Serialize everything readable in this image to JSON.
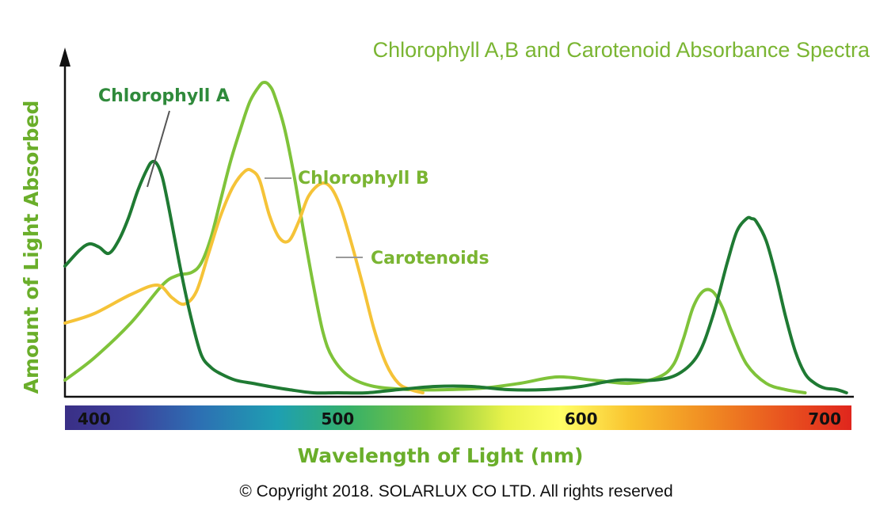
{
  "chart_data": {
    "type": "line",
    "title": "Chlorophyll A,B and Carotenoid Absorbance Spectra",
    "xlabel": "Wavelength of Light (nm)",
    "ylabel": "Amount of Light Absorbed",
    "xlim": [
      388,
      712
    ],
    "ylim": [
      0,
      1
    ],
    "xticks": [
      400,
      500,
      600,
      700
    ],
    "grid": false,
    "legend": "inline labels",
    "series": [
      {
        "name": "Chlorophyll A",
        "color": "#1f7a33",
        "x": [
          388,
          394,
          398,
          402,
          406,
          410,
          414,
          418,
          422,
          424,
          426,
          428,
          430,
          433,
          436,
          440,
          444,
          448,
          452,
          458,
          465,
          472,
          480,
          490,
          500,
          512,
          525,
          540,
          555,
          570,
          585,
          600,
          615,
          630,
          640,
          648,
          654,
          660,
          664,
          668,
          670,
          672,
          676,
          680,
          684,
          688,
          692,
          696,
          700,
          705,
          709
        ],
        "y": [
          0.41,
          0.46,
          0.48,
          0.47,
          0.45,
          0.49,
          0.56,
          0.65,
          0.72,
          0.74,
          0.73,
          0.69,
          0.62,
          0.5,
          0.38,
          0.24,
          0.13,
          0.09,
          0.07,
          0.05,
          0.04,
          0.03,
          0.02,
          0.01,
          0.01,
          0.01,
          0.02,
          0.03,
          0.03,
          0.02,
          0.02,
          0.03,
          0.05,
          0.05,
          0.07,
          0.13,
          0.25,
          0.42,
          0.52,
          0.56,
          0.56,
          0.55,
          0.49,
          0.38,
          0.25,
          0.14,
          0.07,
          0.04,
          0.025,
          0.02,
          0.01
        ]
      },
      {
        "name": "Chlorophyll B",
        "color": "#7fc33a",
        "x": [
          388,
          400,
          415,
          428,
          434,
          440,
          444,
          448,
          452,
          456,
          460,
          464,
          468,
          470,
          472,
          474,
          478,
          482,
          486,
          490,
          494,
          498,
          505,
          515,
          530,
          545,
          560,
          575,
          590,
          605,
          620,
          632,
          638,
          642,
          646,
          650,
          654,
          658,
          662,
          668,
          676,
          684,
          692
        ],
        "y": [
          0.05,
          0.12,
          0.23,
          0.35,
          0.38,
          0.39,
          0.42,
          0.5,
          0.62,
          0.74,
          0.84,
          0.93,
          0.98,
          0.99,
          0.98,
          0.95,
          0.85,
          0.7,
          0.52,
          0.35,
          0.2,
          0.12,
          0.06,
          0.03,
          0.02,
          0.02,
          0.025,
          0.04,
          0.06,
          0.05,
          0.04,
          0.06,
          0.1,
          0.18,
          0.28,
          0.33,
          0.33,
          0.28,
          0.2,
          0.1,
          0.04,
          0.02,
          0.01
        ]
      },
      {
        "name": "Carotenoids",
        "color": "#f5c338",
        "x": [
          388,
          400,
          415,
          426,
          432,
          437,
          442,
          447,
          452,
          457,
          462,
          465,
          468,
          472,
          476,
          480,
          484,
          488,
          493,
          497,
          501,
          505,
          510,
          515,
          520,
          525,
          530,
          535
        ],
        "y": [
          0.23,
          0.26,
          0.32,
          0.35,
          0.31,
          0.29,
          0.33,
          0.45,
          0.57,
          0.66,
          0.71,
          0.71,
          0.68,
          0.57,
          0.5,
          0.49,
          0.55,
          0.63,
          0.67,
          0.66,
          0.6,
          0.5,
          0.36,
          0.21,
          0.1,
          0.04,
          0.02,
          0.01
        ]
      }
    ]
  },
  "series_label_color": "#7ab532",
  "series_a_label_color": "#2f8a3b",
  "axis_label_color": "#6aae2a",
  "copyright": "© Copyright 2018. SOLARLUX CO LTD.  All rights reserved"
}
